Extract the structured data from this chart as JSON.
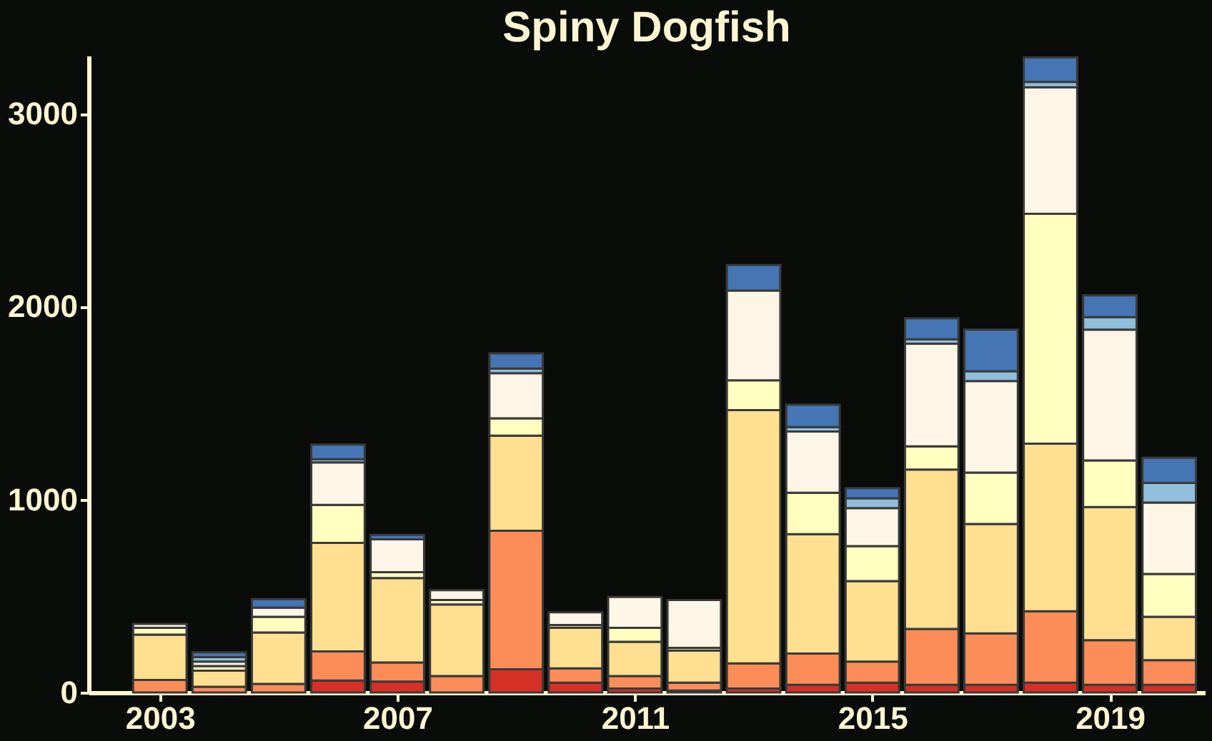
{
  "chart_data": {
    "type": "bar",
    "title": "Spiny Dogfish",
    "stacked": true,
    "x": [
      2003,
      2004,
      2005,
      2006,
      2007,
      2008,
      2009,
      2010,
      2011,
      2012,
      2013,
      2014,
      2015,
      2016,
      2017,
      2018,
      2019,
      2020
    ],
    "series": [
      {
        "color": "#d73027",
        "values": [
          null,
          0,
          0,
          62,
          56,
          0,
          120,
          51,
          20,
          10,
          20,
          40,
          51,
          40,
          40,
          51,
          40,
          40
        ]
      },
      {
        "color": "#fc8d59",
        "values": [
          65,
          30,
          44,
          151,
          99,
          85,
          718,
          74,
          65,
          41,
          131,
          162,
          109,
          289,
          266,
          370,
          231,
          127
        ]
      },
      {
        "color": "#fee090",
        "values": [
          235,
          83,
          267,
          562,
          438,
          371,
          493,
          211,
          178,
          166,
          1312,
          618,
          417,
          826,
          567,
          868,
          690,
          225
        ]
      },
      {
        "color": "#ffffbf",
        "values": [
          35,
          24,
          81,
          197,
          30,
          23,
          90,
          14,
          72,
          14,
          155,
          215,
          181,
          120,
          266,
          1192,
          241,
          222
        ]
      },
      {
        "color": "#fdf5e6",
        "values": [
          20,
          23,
          47,
          220,
          171,
          51,
          234,
          65,
          160,
          248,
          465,
          317,
          197,
          532,
          475,
          655,
          678,
          370
        ]
      },
      {
        "color": "#91bfdb",
        "values": [
          0,
          23,
          0,
          17,
          0,
          0,
          24,
          0,
          0,
          0,
          0,
          23,
          51,
          23,
          51,
          28,
          65,
          102
        ]
      },
      {
        "color": "#4575b4",
        "values": [
          0,
          25,
          45,
          76,
          23,
          0,
          78,
          0,
          0,
          0,
          132,
          116,
          53,
          109,
          215,
          127,
          113,
          130
        ]
      }
    ],
    "xlim": [
      2001.8,
      2020.6
    ],
    "xticks": [
      2003,
      2007,
      2011,
      2015,
      2019
    ],
    "ylim": [
      0,
      3300
    ],
    "yticks": [
      0,
      1000,
      2000,
      3000
    ],
    "grid": false,
    "legend": false
  }
}
